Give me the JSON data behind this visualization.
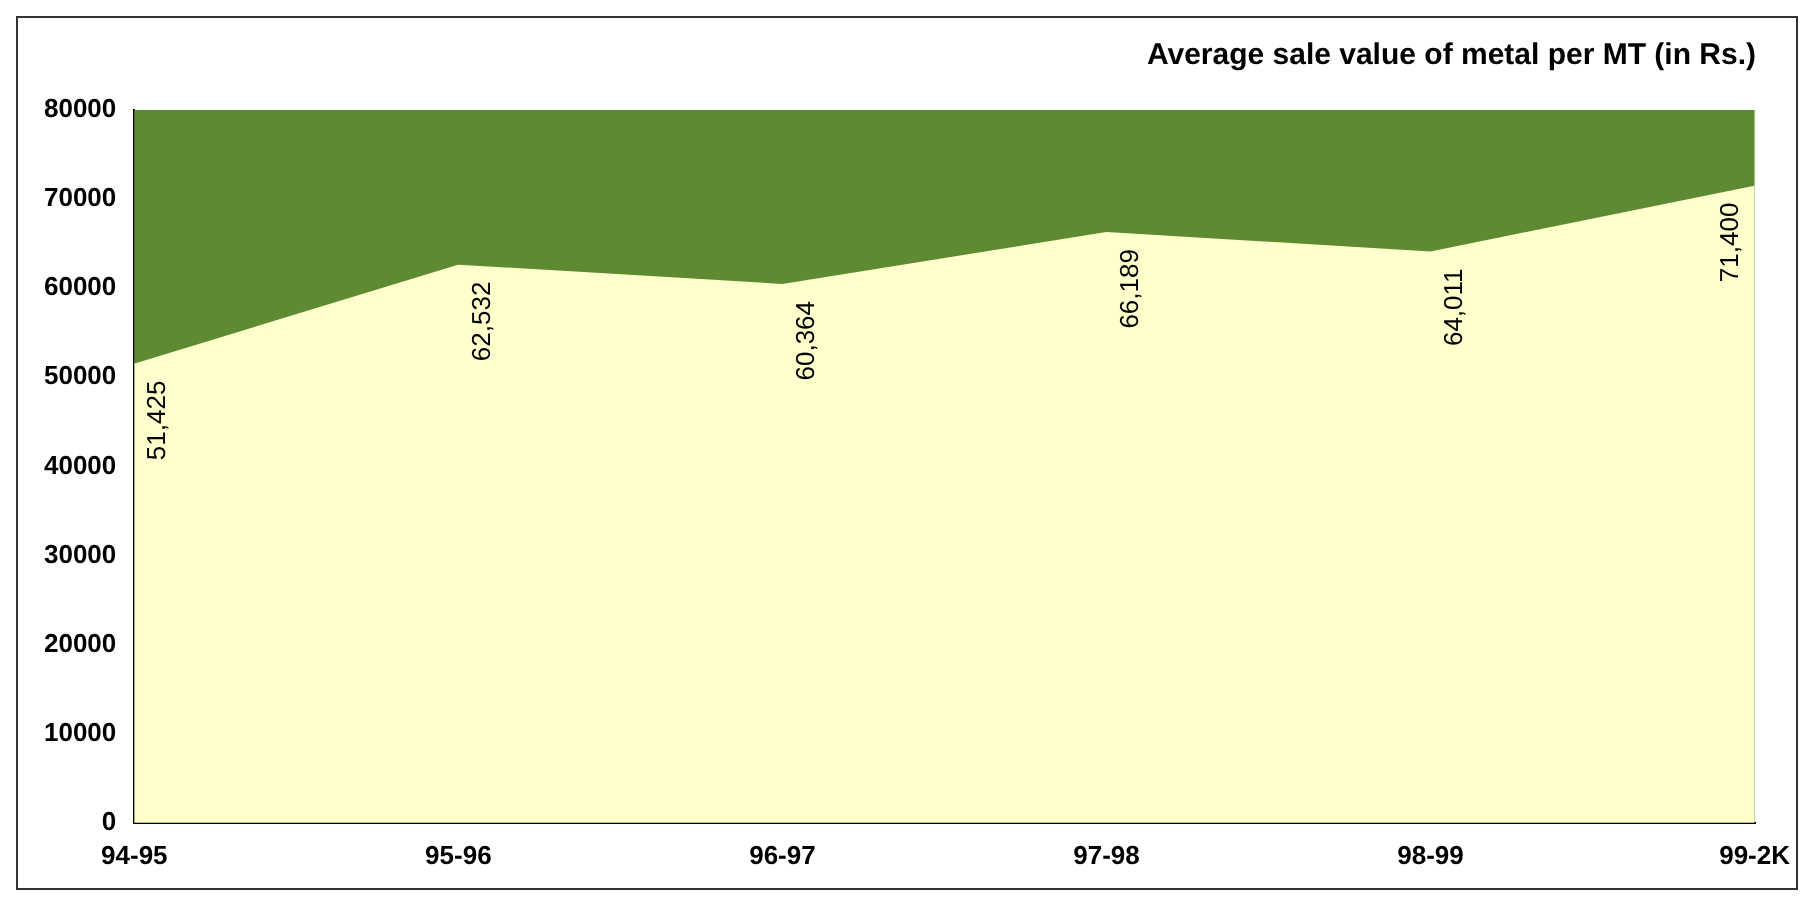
{
  "chart_data": {
    "type": "area",
    "title": "Average sale value of metal per MT (in Rs.)",
    "categories": [
      "94-95",
      "95-96",
      "96-97",
      "97-98",
      "98-99",
      "99-2K"
    ],
    "series": [
      {
        "color": "#ffffcc",
        "values": [
          51425,
          62532,
          60364,
          66189,
          64011,
          71400
        ],
        "value_labels": [
          "51,425",
          "62,532",
          "60,364",
          "66,189",
          "64,011",
          "71,400"
        ]
      }
    ],
    "ylim": [
      0,
      80000
    ],
    "yticks": [
      0,
      10000,
      20000,
      30000,
      40000,
      50000,
      60000,
      70000,
      80000
    ],
    "bands": [
      {
        "axis": "y",
        "from": 0,
        "to": 80000,
        "color": "#5e8a32"
      }
    ],
    "grid": false,
    "legend": false
  }
}
